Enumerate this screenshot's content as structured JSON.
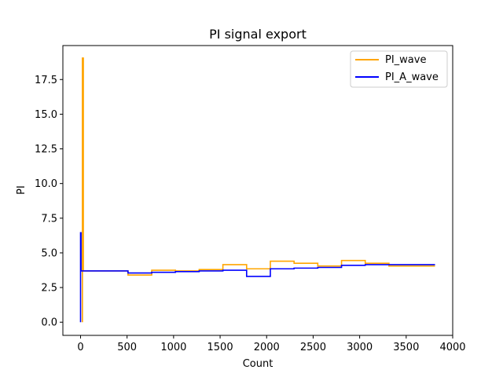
{
  "chart_data": {
    "type": "line",
    "drawstyle": "steps-pre",
    "title": "PI signal export",
    "xlabel": "Count",
    "ylabel": "PI",
    "xlim": [
      -190,
      4000
    ],
    "ylim": [
      -0.95,
      19.95
    ],
    "xticks": [
      0,
      500,
      1000,
      1500,
      2000,
      2500,
      3000,
      3500,
      4000
    ],
    "xtick_labels": [
      "0",
      "500",
      "1000",
      "1500",
      "2000",
      "2500",
      "3000",
      "3500",
      "4000"
    ],
    "yticks": [
      0.0,
      2.5,
      5.0,
      7.5,
      10.0,
      12.5,
      15.0,
      17.5
    ],
    "ytick_labels": [
      "0.0",
      "2.5",
      "5.0",
      "7.5",
      "10.0",
      "12.5",
      "15.0",
      "17.5"
    ],
    "grid": false,
    "legend_position": "upper right",
    "series": [
      {
        "name": "PI_wave",
        "color": "#ffa500",
        "x": [
          20,
          30,
          510,
          765,
          1020,
          1275,
          1530,
          1785,
          2040,
          2295,
          2550,
          2805,
          3060,
          3315,
          3570,
          3810
        ],
        "y": [
          0.0,
          19.05,
          3.7,
          3.4,
          3.75,
          3.7,
          3.8,
          4.15,
          3.85,
          4.4,
          4.25,
          4.05,
          4.45,
          4.25,
          4.05,
          4.05
        ]
      },
      {
        "name": "PI_A_wave",
        "color": "#0000ff",
        "x": [
          0,
          5,
          510,
          765,
          1020,
          1275,
          1530,
          1785,
          2040,
          2295,
          2550,
          2805,
          3060,
          3315,
          3570,
          3810
        ],
        "y": [
          0.0,
          6.45,
          3.7,
          3.55,
          3.6,
          3.65,
          3.7,
          3.75,
          3.3,
          3.85,
          3.9,
          3.95,
          4.1,
          4.15,
          4.15,
          4.15
        ]
      }
    ]
  }
}
